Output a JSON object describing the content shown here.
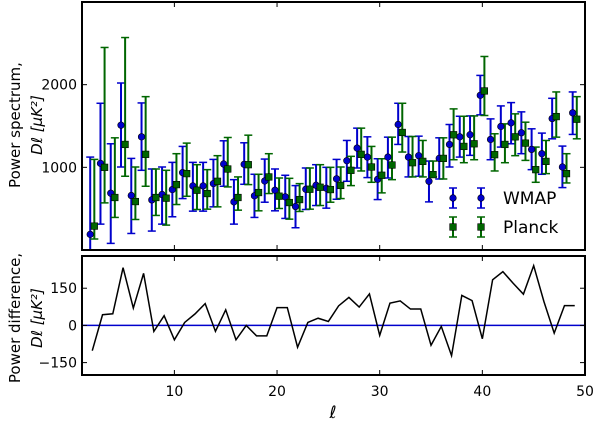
{
  "chart_data": [
    {
      "type": "scatter",
      "panel": "top",
      "ylabel_line1": "Power spectrum,",
      "ylabel_line2": "Dℓ [μK²]",
      "xlim": [
        1,
        50
      ],
      "ylim": [
        0,
        3000
      ],
      "yticks": [
        1000,
        2000
      ],
      "ytick_labels": [
        "1000",
        "2000"
      ],
      "xticks": [
        10,
        20,
        30,
        40,
        50
      ],
      "legend": {
        "placement": "lower-right",
        "entries": [
          "WMAP",
          "Planck"
        ]
      },
      "x": [
        2,
        3,
        4,
        5,
        6,
        7,
        8,
        9,
        10,
        11,
        12,
        13,
        14,
        15,
        16,
        17,
        18,
        19,
        20,
        21,
        22,
        23,
        24,
        25,
        26,
        27,
        28,
        29,
        30,
        31,
        32,
        33,
        34,
        35,
        36,
        37,
        38,
        39,
        40,
        41,
        42,
        43,
        44,
        45,
        46,
        47,
        48,
        49
      ],
      "series": [
        {
          "name": "WMAP",
          "color": "#0000cc",
          "marker": "circle",
          "values": [
            189,
            1048,
            687,
            1510,
            659,
            1369,
            606,
            671,
            731,
            936,
            775,
            775,
            803,
            1040,
            582,
            1036,
            655,
            835,
            723,
            643,
            526,
            735,
            783,
            747,
            861,
            1080,
            1233,
            1124,
            855,
            1124,
            1518,
            1124,
            1141,
            831,
            1108,
            1277,
            1369,
            1394,
            1871,
            1337,
            1494,
            1538,
            1418,
            1217,
            1165,
            1590,
            1004,
            1659
          ],
          "err_low": [
            0,
            313,
            80,
            1004,
            200,
            964,
            229,
            313,
            402,
            622,
            470,
            470,
            522,
            771,
            313,
            795,
            394,
            578,
            474,
            382,
            269,
            490,
            538,
            506,
            614,
            831,
            992,
            876,
            610,
            871,
            1277,
            884,
            892,
            582,
            859,
            1004,
            1124,
            1145,
            1635,
            1092,
            1245,
            1285,
            1165,
            972,
            916,
            1345,
            755,
            1398
          ],
          "err_high": [
            1124,
            1775,
            1285,
            2020,
            1108,
            1779,
            980,
            1004,
            1060,
            1253,
            1060,
            1060,
            1096,
            1321,
            851,
            1297,
            916,
            1100,
            980,
            904,
            779,
            992,
            1032,
            1000,
            1096,
            1325,
            1474,
            1369,
            1104,
            1365,
            1775,
            1373,
            1377,
            1076,
            1357,
            1518,
            1618,
            1622,
            2112,
            1586,
            1743,
            1783,
            1671,
            1466,
            1414,
            1835,
            1257,
            1912
          ]
        },
        {
          "name": "Planck",
          "color": "#006600",
          "marker": "square",
          "values": [
            289,
            1000,
            635,
            1277,
            586,
            1157,
            635,
            627,
            791,
            924,
            723,
            683,
            831,
            980,
            635,
            1032,
            695,
            884,
            651,
            574,
            610,
            735,
            759,
            731,
            781,
            964,
            1157,
            1004,
            904,
            1028,
            1422,
            1056,
            1072,
            912,
            1108,
            1394,
            1253,
            1285,
            1924,
            1153,
            1277,
            1369,
            1293,
            972,
            1072,
            1614,
            924,
            1582
          ],
          "err_low": [
            133,
            570,
            394,
            892,
            369,
            771,
            418,
            301,
            550,
            650,
            490,
            494,
            522,
            763,
            482,
            791,
            474,
            683,
            502,
            373,
            466,
            494,
            538,
            578,
            622,
            779,
            956,
            819,
            691,
            851,
            1185,
            884,
            884,
            884,
            859,
            1092,
            1056,
            1092,
            1627,
            956,
            1056,
            1141,
            1084,
            819,
            924,
            1365,
            811,
            1345
          ],
          "err_high": [
            1096,
            2450,
            1357,
            2570,
            1004,
            1855,
            980,
            964,
            1165,
            1293,
            1032,
            972,
            1141,
            1361,
            884,
            1389,
            916,
            1165,
            871,
            867,
            803,
            992,
            1032,
            1000,
            1004,
            1133,
            1474,
            1253,
            1104,
            1365,
            1775,
            1373,
            1325,
            1076,
            1357,
            1707,
            1618,
            1622,
            2341,
            1406,
            1526,
            1647,
            1546,
            1245,
            1325,
            1912,
            1165,
            1855
          ]
        }
      ]
    },
    {
      "type": "line",
      "panel": "bottom",
      "ylabel_line1": "Power difference,",
      "ylabel_line2": "Dℓ [μK²]",
      "xlabel": "ℓ",
      "xlim": [
        1,
        50
      ],
      "ylim": [
        -200,
        280
      ],
      "yticks": [
        -150,
        0,
        150
      ],
      "ytick_labels": [
        "−150",
        "0",
        "150"
      ],
      "xticks": [
        10,
        20,
        30,
        40,
        50
      ],
      "xtick_labels": [
        "10",
        "20",
        "30",
        "40",
        "50"
      ],
      "reference_line": {
        "y": 0,
        "color": "#0000cc"
      },
      "x": [
        2,
        3,
        4,
        5,
        6,
        7,
        8,
        9,
        10,
        11,
        12,
        13,
        14,
        15,
        16,
        17,
        18,
        19,
        20,
        21,
        22,
        23,
        24,
        25,
        26,
        27,
        28,
        29,
        30,
        31,
        32,
        33,
        34,
        35,
        36,
        37,
        38,
        39,
        40,
        41,
        42,
        43,
        44,
        45,
        46,
        47,
        48,
        49
      ],
      "series": [
        {
          "name": "difference",
          "color": "#000000",
          "values": [
            -102,
            43,
            47,
            233,
            70,
            210,
            -24,
            39,
            -58,
            12,
            46,
            88,
            -24,
            63,
            -58,
            0,
            -42,
            -42,
            72,
            72,
            -88,
            12,
            29,
            16,
            79,
            113,
            74,
            127,
            -40,
            90,
            99,
            66,
            66,
            -80,
            -4,
            -122,
            121,
            100,
            -54,
            184,
            217,
            170,
            126,
            241,
            96,
            -31,
            80,
            80
          ]
        }
      ]
    }
  ]
}
